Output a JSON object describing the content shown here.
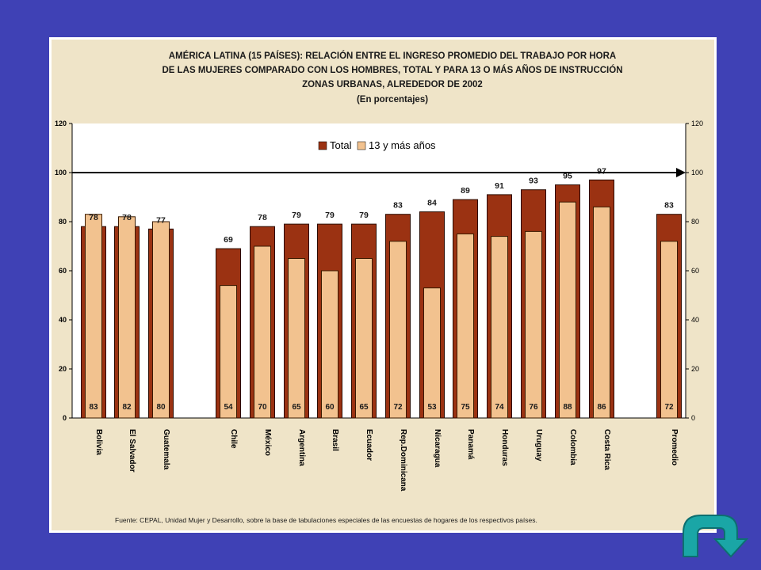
{
  "colors": {
    "page_background": "#3f41b5",
    "panel_background": "#efe4c8",
    "total_bar": "#9b3212",
    "years13_bar": "#f2c28f",
    "nav_icon": "#1aa6a6"
  },
  "nav_icon_name": "curved-arrow-return-icon",
  "chart_data": {
    "type": "bar",
    "title_lines": [
      "AMÉRICA LATINA (15 PAÍSES): RELACIÓN ENTRE EL INGRESO PROMEDIO DEL TRABAJO POR HORA",
      "DE LAS MUJERES COMPARADO CON  LOS HOMBRES, TOTAL Y PARA 13 O MÁS  AÑOS DE INSTRUCCIÓN",
      "ZONAS URBANAS, ALREDEDOR DE 2002",
      "(En porcentajes)"
    ],
    "categories": [
      "Bolivia",
      "El Salvador",
      "Guatemala",
      "Chile",
      "México",
      "Argentina",
      "Brasil",
      "Ecuador",
      "Rep.Dominicana",
      "Nicaragua",
      "Panamá",
      "Honduras",
      "Uruguay",
      "Colombia",
      "Costa Rica",
      "Promedio"
    ],
    "series": [
      {
        "name": "Total",
        "values": [
          78,
          78,
          77,
          69,
          78,
          79,
          79,
          79,
          83,
          84,
          89,
          91,
          93,
          95,
          97,
          83
        ]
      },
      {
        "name": "13 y más años",
        "values": [
          83,
          82,
          80,
          54,
          70,
          65,
          60,
          65,
          72,
          53,
          75,
          74,
          76,
          88,
          86,
          72
        ]
      }
    ],
    "ylim": [
      0,
      120
    ],
    "yticks": [
      "0",
      "20",
      "40",
      "60",
      "80",
      "100",
      "120"
    ],
    "reference_line": 100,
    "legend_position": "top-center",
    "source": "Fuente: CEPAL, Unidad Mujer y Desarrollo, sobre la base de tabulaciones especiales de las encuestas de hogares de los respectivos países."
  }
}
